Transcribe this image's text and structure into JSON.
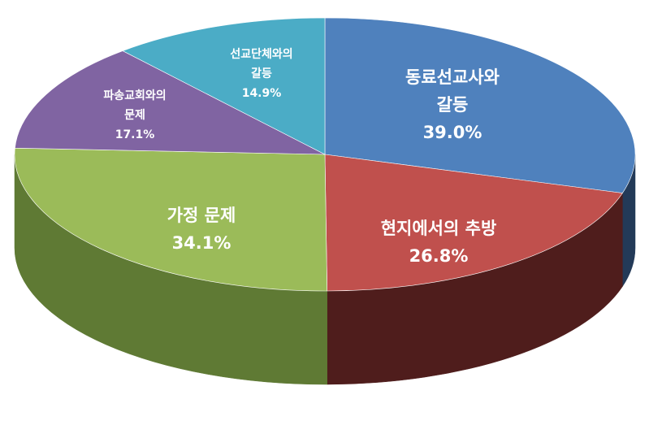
{
  "chart_data": {
    "type": "pie",
    "title": "",
    "slices": [
      {
        "label_lines": [
          "동료선교사와",
          "갈등"
        ],
        "value": 39.0,
        "value_label": "39.0%",
        "color": "#4F81BD",
        "side_color": "#233A58"
      },
      {
        "label_lines": [
          "현지에서의 추방"
        ],
        "value": 26.8,
        "value_label": "26.8%",
        "color": "#C0504D",
        "side_color": "#4F1D1C"
      },
      {
        "label_lines": [
          "가정 문제"
        ],
        "value": 34.1,
        "value_label": "34.1%",
        "color": "#9BBB59",
        "side_color": "#5F7A34"
      },
      {
        "label_lines": [
          "파송교회와의",
          "문제"
        ],
        "value": 17.1,
        "value_label": "17.1%",
        "color": "#8064A2",
        "side_color": "#4A3A60"
      },
      {
        "label_lines": [
          "선교단체와의",
          "갈등"
        ],
        "value": 14.9,
        "value_label": "14.9%",
        "color": "#4BACC6",
        "side_color": "#2A6676"
      }
    ],
    "legend": "none",
    "style": "3d-tilted"
  }
}
